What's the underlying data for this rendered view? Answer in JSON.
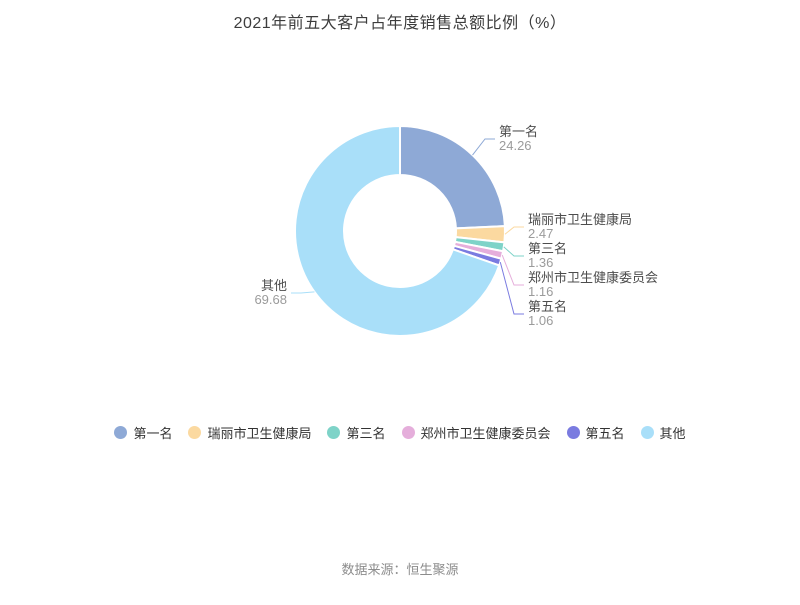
{
  "title": "2021年前五大客户占年度销售总额比例（%）",
  "footer": {
    "source": "数据来源：恒生聚源"
  },
  "chart_data": {
    "type": "pie",
    "subtype": "donut",
    "title": "2021年前五大客户占年度销售总额比例（%）",
    "unit": "%",
    "start_angle": "top",
    "direction": "clockwise",
    "legend_position": "bottom",
    "series": [
      {
        "name": "第一名",
        "value": 24.26,
        "color": "#8EA9D6"
      },
      {
        "name": "瑞丽市卫生健康局",
        "value": 2.47,
        "color": "#FBD9A0"
      },
      {
        "name": "第三名",
        "value": 1.36,
        "color": "#7ED3C8"
      },
      {
        "name": "郑州市卫生健康委员会",
        "value": 1.16,
        "color": "#E5AEDB"
      },
      {
        "name": "第五名",
        "value": 1.06,
        "color": "#7A7BE0"
      },
      {
        "name": "其他",
        "value": 69.68,
        "color": "#A9DFF9"
      }
    ]
  }
}
